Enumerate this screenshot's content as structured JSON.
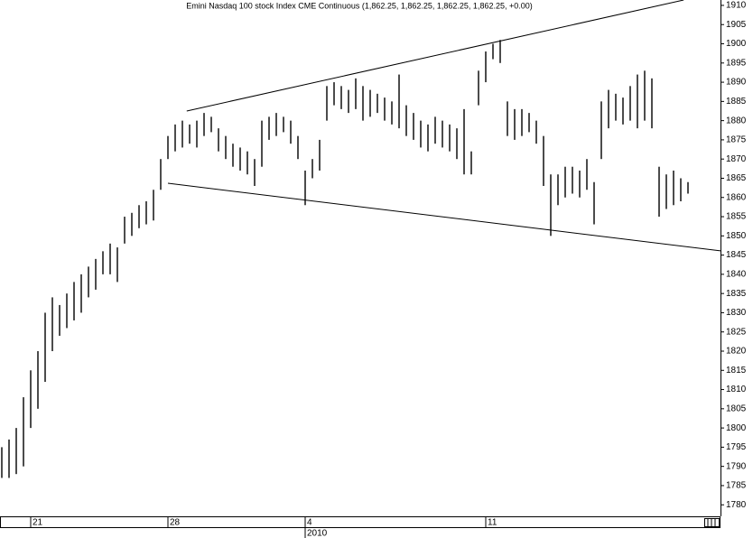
{
  "chart_data": {
    "type": "range-bar",
    "title": "Emini Nasdaq 100 stock Index CME Continuous (1,862.25, 1,862.25, 1,862.25, 1,862.25, +0.00)",
    "color": "#000000",
    "high": [
      1795,
      1797,
      1800,
      1808,
      1815,
      1820,
      1830,
      1834,
      1832,
      1835,
      1838,
      1840,
      1842,
      1844,
      1846,
      1848,
      1847,
      1855,
      1856,
      1858,
      1859,
      1862,
      1870,
      1876,
      1879,
      1880,
      1879,
      1880,
      1882,
      1881,
      1878,
      1876,
      1874,
      1873,
      1872,
      1870,
      1880,
      1881,
      1882,
      1881,
      1880,
      1876,
      1867,
      1870,
      1875,
      1889,
      1890,
      1889,
      1888,
      1891,
      1889,
      1888,
      1887,
      1886,
      1885,
      1892,
      1884,
      1882,
      1880,
      1879,
      1881,
      1880,
      1879,
      1878,
      1883,
      1872,
      1893,
      1898,
      1900,
      1901,
      1885,
      1883,
      1883,
      1882,
      1880,
      1876,
      1866,
      1866,
      1868,
      1868,
      1867,
      1870,
      1864,
      1885,
      1888,
      1887,
      1886,
      1889,
      1892,
      1893,
      1891,
      1868,
      1866,
      1867,
      1865,
      1864
    ],
    "low": [
      1787,
      1787,
      1788,
      1790,
      1800,
      1805,
      1812,
      1820,
      1824,
      1826,
      1828,
      1830,
      1834,
      1836,
      1840,
      1840,
      1838,
      1848,
      1850,
      1852,
      1853,
      1854,
      1862,
      1870,
      1872,
      1873,
      1874,
      1873,
      1876,
      1877,
      1872,
      1870,
      1868,
      1867,
      1866,
      1863,
      1868,
      1875,
      1876,
      1877,
      1874,
      1870,
      1858,
      1865,
      1867,
      1880,
      1884,
      1883,
      1882,
      1883,
      1880,
      1881,
      1882,
      1880,
      1879,
      1878,
      1876,
      1875,
      1873,
      1872,
      1874,
      1873,
      1872,
      1870,
      1866,
      1866,
      1884,
      1890,
      1896,
      1895,
      1876,
      1875,
      1876,
      1877,
      1874,
      1863,
      1850,
      1858,
      1860,
      1861,
      1860,
      1862,
      1853,
      1870,
      1878,
      1880,
      1879,
      1880,
      1878,
      1880,
      1878,
      1855,
      1857,
      1858,
      1859,
      1861
    ],
    "trendlines": [
      {
        "x": [
          25.6,
          94.4
        ],
        "y": [
          1882.5,
          1911.4
        ]
      },
      {
        "x": [
          23,
          99.5
        ],
        "y": [
          1863.7,
          1846.1
        ]
      }
    ],
    "xlim": [
      -0.25,
      99.5
    ],
    "xticks": [
      {
        "value": 4,
        "label": "21"
      },
      {
        "value": 23,
        "label": "28"
      },
      {
        "value": 42,
        "label": "4"
      },
      {
        "value": 67,
        "label": "11"
      }
    ],
    "xsublabels": [
      {
        "value": 42,
        "label": "2010"
      }
    ],
    "ylim": [
      1777,
      1911.4
    ],
    "yticks": [
      1780,
      1785,
      1790,
      1795,
      1800,
      1805,
      1810,
      1815,
      1820,
      1825,
      1830,
      1835,
      1840,
      1845,
      1850,
      1855,
      1860,
      1865,
      1870,
      1875,
      1880,
      1885,
      1890,
      1895,
      1900,
      1905,
      1910
    ]
  }
}
